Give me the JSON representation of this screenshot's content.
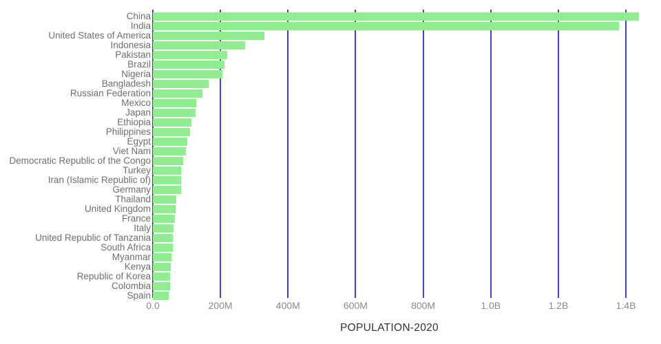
{
  "chart_data": {
    "type": "bar",
    "orientation": "horizontal",
    "title": "POPULATION-2020",
    "xlabel": "POPULATION-2020",
    "ylabel": "",
    "categories": [
      "China",
      "India",
      "United States of America",
      "Indonesia",
      "Pakistan",
      "Brazil",
      "Nigeria",
      "Bangladesh",
      "Russian Federation",
      "Mexico",
      "Japan",
      "Ethiopia",
      "Philippines",
      "Egypt",
      "Viet Nam",
      "Democratic Republic of the Congo",
      "Turkey",
      "Iran (Islamic Republic of)",
      "Germany",
      "Thailand",
      "United Kingdom",
      "France",
      "Italy",
      "United Republic of Tanzania",
      "South Africa",
      "Myanmar",
      "Kenya",
      "Republic of Korea",
      "Colombia",
      "Spain"
    ],
    "values_millions": [
      1439.32,
      1380.0,
      331.0,
      273.52,
      220.89,
      212.56,
      206.14,
      164.69,
      145.93,
      128.93,
      126.48,
      114.96,
      109.58,
      102.33,
      97.34,
      89.56,
      84.34,
      83.99,
      83.78,
      69.8,
      67.89,
      65.27,
      60.46,
      59.73,
      59.31,
      54.41,
      53.77,
      51.27,
      50.88,
      46.75
    ],
    "x_axis": {
      "min_millions": 0,
      "max_millions": 1400,
      "tick_interval_millions": 200,
      "tick_labels": [
        "0.0",
        "200M",
        "400M",
        "600M",
        "800M",
        "1.0B",
        "1.2B",
        "1.4B"
      ]
    },
    "grid": "vertical-gridlines-on",
    "legend": "none",
    "colors": {
      "bar": "#90ee90",
      "gridline": "#4141d6",
      "category_label": "#6f6f6f",
      "tick_label": "#8a8a8a",
      "title": "#333333",
      "background": "#ffffff"
    }
  }
}
